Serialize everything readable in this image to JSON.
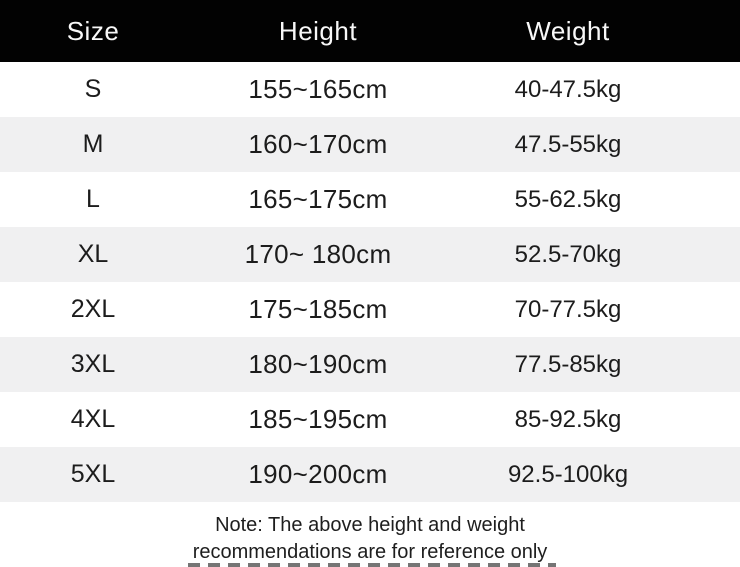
{
  "chart_data": {
    "type": "table",
    "columns": [
      "Size",
      "Height",
      "Weight"
    ],
    "rows": [
      [
        "S",
        "155~165cm",
        "40-47.5kg"
      ],
      [
        "M",
        "160~170cm",
        "47.5-55kg"
      ],
      [
        "L",
        "165~175cm",
        "55-62.5kg"
      ],
      [
        "XL",
        "170~ 180cm",
        "52.5-70kg"
      ],
      [
        "2XL",
        "175~185cm",
        "70-77.5kg"
      ],
      [
        "3XL",
        "180~190cm",
        "77.5-85kg"
      ],
      [
        "4XL",
        "185~195cm",
        "85-92.5kg"
      ],
      [
        "5XL",
        "190~200cm",
        "92.5-100kg"
      ]
    ],
    "note": "Note: The above height and weight recommendations are for reference only",
    "layout_hints": {
      "header_style": "black bar, white text",
      "row_striping": "white / light gray alternating",
      "grid": "off"
    }
  },
  "note": {
    "line1": "Note: The above height and weight",
    "line2": "recommendations are for reference only"
  },
  "colors": {
    "header_bg": "#020202",
    "header_text": "#f8f8f8",
    "row_alt_bg": "#f0f0f1",
    "body_text": "#1c1c1c"
  }
}
